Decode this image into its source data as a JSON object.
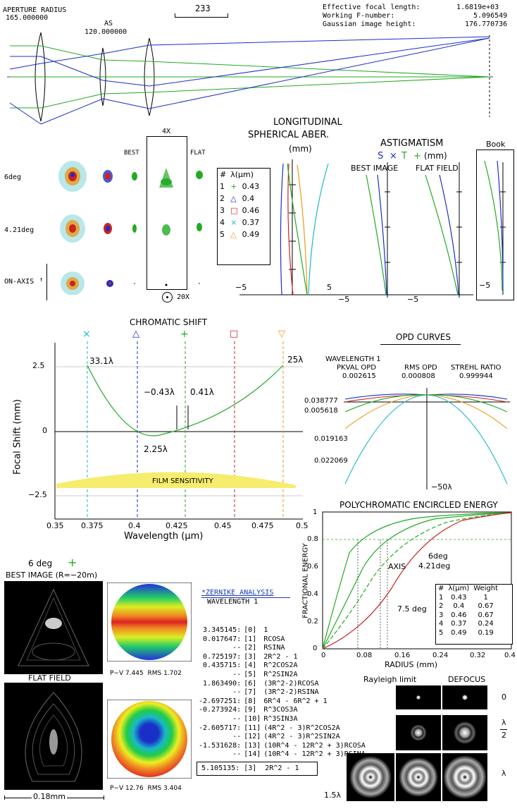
{
  "header": {
    "aperture_radius_label": "APERTURE RADIUS",
    "aperture_radius_value": "165.000000",
    "as_label": "AS",
    "as_value": "120.000000",
    "scale_value": "233",
    "efl_label": "Effective focal length:",
    "efl_value": "1.6819e+03",
    "fnum_label": "Working F-number:",
    "fnum_value": "5.096549",
    "gih_label": "Gaussian image height:",
    "gih_value": "176.770736"
  },
  "spots": {
    "mag": "4X",
    "best": "BEST",
    "flat": "FLAT",
    "rows": [
      "6deg",
      "4.21deg",
      "ON-AXIS"
    ],
    "axis_mark": "↑",
    "zoom": "20X",
    "zoom_icon": "circle-dot-icon"
  },
  "legend": {
    "header": [
      "#",
      "λ(μm)"
    ],
    "rows": [
      {
        "n": "1",
        "sym": "+",
        "wl": "0.43",
        "color": "#22aa22"
      },
      {
        "n": "2",
        "sym": "△",
        "wl": "0.4",
        "color": "#1a2fc8"
      },
      {
        "n": "3",
        "sym": "□",
        "wl": "0.46",
        "color": "#cc2222"
      },
      {
        "n": "4",
        "sym": "×",
        "wl": "0.37",
        "color": "#1ab8c8"
      },
      {
        "n": "5",
        "sym": "△",
        "wl": "0.49",
        "color": "#e89a1a"
      }
    ]
  },
  "lsa": {
    "title1": "LONGITUDINAL",
    "title2": "SPHERICAL ABER.",
    "unit": "(mm)",
    "xmin": "−5",
    "xmax": "5"
  },
  "astig": {
    "title": "ASTIGMATISM",
    "s": "S",
    "x": "×",
    "t": "T",
    "plus": "+",
    "unit": "(mm)",
    "best": "BEST IMAGE",
    "flat": "FLAT FIELD",
    "book": "Book",
    "xmin": "−5",
    "xmin2": "−5",
    "xmin3": "−5"
  },
  "chromatic": {
    "title": "CHROMATIC SHIFT",
    "ylabel": "Focal Shift (mm)",
    "xlabel": "Wavelength (μm)",
    "yticks": [
      "2.5",
      "0",
      "−2.5"
    ],
    "xticks": [
      "0.35",
      "0.375",
      "0.4",
      "0.425",
      "0.45",
      "0.475",
      "0.5"
    ],
    "ann_left": "33.1λ",
    "ann_right": "25λ",
    "ann_m1": "−0.43λ",
    "ann_m2": "0.41λ",
    "ann_min": "2.25λ",
    "film": "FILM SENSITIVITY"
  },
  "opd": {
    "title": "OPD CURVES",
    "wavelength": "WAVELENGTH 1",
    "pk_label": "PKVAL OPD",
    "pk_value": "0.002615",
    "rms_label": "RMS OPD",
    "rms_value": "0.000808",
    "strehl_label": "STREHL RATIO",
    "strehl_value": "0.999944",
    "v1": "0.038777",
    "v2": "0.005618",
    "v3": "0.019163",
    "v4": "0.022069",
    "scale": "−50λ"
  },
  "energy": {
    "title": "POLYCHROMATIC ENCIRCLED ENERGY",
    "ylabel": "FRACTIONAL ENERGY",
    "xlabel": "RADIUS (mm)",
    "yticks": [
      "1",
      "0.8",
      "0.6",
      "0.4",
      "0.2",
      "0"
    ],
    "xticks": [
      "0",
      "0.08",
      "0.16",
      "0.24",
      "0.32",
      "0.4"
    ],
    "labels": [
      "6deg",
      "4.21deg",
      "AXIS",
      "7.5 deg"
    ],
    "table_header": [
      "#",
      "λ(μm)",
      "Weight"
    ],
    "table_rows": [
      [
        "1",
        "0.43",
        "1"
      ],
      [
        "2",
        "0.4",
        "0.67"
      ],
      [
        "3",
        "0.46",
        "0.67"
      ],
      [
        "4",
        "0.37",
        "0.24"
      ],
      [
        "5",
        "0.49",
        "0.19"
      ]
    ]
  },
  "psf": {
    "field": "6 deg",
    "field_sym": "+",
    "best": "BEST IMAGE (R=−20m)",
    "flat": "FLAT FIELD",
    "scale": "0.18mm"
  },
  "wavemaps": {
    "top": "P−V 7.445  RMS 1.702",
    "bottom": "P−V 12.76  RMS 3.404"
  },
  "zernike": {
    "title": "*ZERNIKE ANALYSIS",
    "subtitle": "WAVELENGTH 1",
    "rows": [
      [
        "3.345145:",
        "[0]",
        "1"
      ],
      [
        "0.017647:",
        "[1]",
        "RCOSA"
      ],
      [
        "--",
        "[2]",
        "RSINA"
      ],
      [
        "0.725197:",
        "[3]",
        "2R^2 - 1"
      ],
      [
        "0.435715:",
        "[4]",
        "R^2COS2A"
      ],
      [
        "--",
        "[5]",
        "R^2SIN2A"
      ],
      [
        "1.863490:",
        "[6]",
        "(3R^2-2)RCOSA"
      ],
      [
        "--",
        "[7]",
        "(3R^2-2)RSINA"
      ],
      [
        "-2.697251:",
        "[8]",
        "6R^4 - 6R^2 + 1"
      ],
      [
        "-0.273924:",
        "[9]",
        "R^3COS3A"
      ],
      [
        "--",
        "[10]",
        "R^3SIN3A"
      ],
      [
        "-2.605717:",
        "[11]",
        "(4R^2 - 3)R^2COS2A"
      ],
      [
        "--",
        "[12]",
        "(4R^2 - 3)R^2SIN2A"
      ],
      [
        "-1.531628:",
        "[13]",
        "(10R^4 - 12R^2 + 3)RCOSA"
      ],
      [
        "--",
        "[14]",
        "(10R^4 - 12R^2 + 3)RSINA"
      ]
    ],
    "summary": "5.105135: [3]  2R^2 - 1"
  },
  "rayleigh": {
    "title": "Rayleigh limit",
    "defocus": "DEFOCUS",
    "r0": "0",
    "r1a": "λ",
    "r1b": "2",
    "r2": "λ",
    "r3": "1.5λ"
  }
}
